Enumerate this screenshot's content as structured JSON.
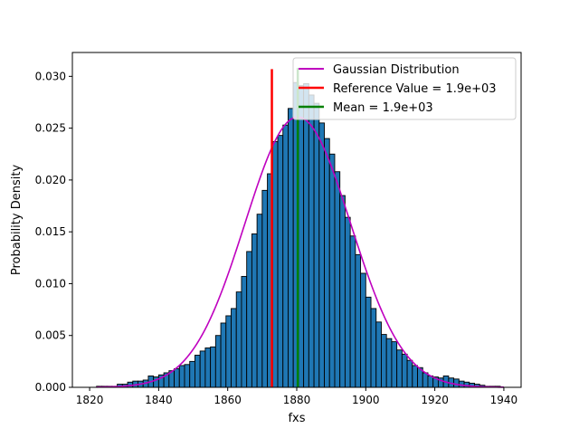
{
  "chart_data": {
    "type": "bar",
    "title": "",
    "xlabel": "fxs",
    "ylabel": "Probability Density",
    "xlim": [
      1815,
      1945
    ],
    "ylim": [
      0,
      0.0323
    ],
    "x_ticks": [
      1820,
      1840,
      1860,
      1880,
      1900,
      1920,
      1940
    ],
    "x_tick_labels": [
      "1820",
      "1840",
      "1860",
      "1880",
      "1900",
      "1920",
      "1940"
    ],
    "y_ticks": [
      0.0,
      0.005,
      0.01,
      0.015,
      0.02,
      0.025,
      0.03
    ],
    "y_tick_labels": [
      "0.000",
      "0.005",
      "0.010",
      "0.015",
      "0.020",
      "0.025",
      "0.030"
    ],
    "grid": false,
    "legend_position": "top-right",
    "histogram": {
      "color": "#1f77b4",
      "edge_color": "#000000",
      "bin_width": 1.5,
      "bin_starts": [
        1822.0,
        1823.5,
        1825.0,
        1826.5,
        1828.0,
        1829.5,
        1831.0,
        1832.5,
        1834.0,
        1835.5,
        1837.0,
        1838.5,
        1840.0,
        1841.5,
        1843.0,
        1844.5,
        1846.0,
        1847.5,
        1849.0,
        1850.5,
        1852.0,
        1853.5,
        1855.0,
        1856.5,
        1858.0,
        1859.5,
        1861.0,
        1862.5,
        1864.0,
        1865.5,
        1867.0,
        1868.5,
        1870.0,
        1871.5,
        1873.0,
        1874.5,
        1876.0,
        1877.5,
        1879.0,
        1880.5,
        1882.0,
        1883.5,
        1885.0,
        1886.5,
        1888.0,
        1889.5,
        1891.0,
        1892.5,
        1894.0,
        1895.5,
        1897.0,
        1898.5,
        1900.0,
        1901.5,
        1903.0,
        1904.5,
        1906.0,
        1907.5,
        1909.0,
        1910.5,
        1912.0,
        1913.5,
        1915.0,
        1916.5,
        1918.0,
        1919.5,
        1921.0,
        1922.5,
        1924.0,
        1925.5,
        1927.0,
        1928.5,
        1930.0,
        1931.5,
        1933.0,
        1934.5,
        1936.0,
        1937.5
      ],
      "densities": [
        0.0001,
        0.0001,
        0.0001,
        0.0001,
        0.0003,
        0.0003,
        0.0005,
        0.0006,
        0.0006,
        0.0007,
        0.0011,
        0.001,
        0.0012,
        0.0014,
        0.0016,
        0.0018,
        0.0021,
        0.0022,
        0.0025,
        0.0031,
        0.0035,
        0.0038,
        0.0039,
        0.005,
        0.0062,
        0.0069,
        0.0076,
        0.0092,
        0.0107,
        0.0131,
        0.0148,
        0.0167,
        0.019,
        0.0206,
        0.0237,
        0.0243,
        0.0253,
        0.0269,
        0.0294,
        0.0291,
        0.0293,
        0.0282,
        0.0274,
        0.0255,
        0.024,
        0.0225,
        0.0208,
        0.0185,
        0.0164,
        0.0146,
        0.0128,
        0.011,
        0.0087,
        0.0076,
        0.0063,
        0.0051,
        0.0047,
        0.0044,
        0.0036,
        0.0032,
        0.0026,
        0.0021,
        0.0019,
        0.0014,
        0.0011,
        0.001,
        0.0009,
        0.0011,
        0.0009,
        0.0008,
        0.0006,
        0.0005,
        0.0004,
        0.0003,
        0.0002,
        0.0001,
        0.0001,
        0.0001
      ]
    },
    "series": [
      {
        "name": "Gaussian Distribution",
        "type": "line",
        "color": "#bf00bf",
        "mean": 1880.3,
        "std": 15.3,
        "x_range": [
          1822,
          1940
        ]
      },
      {
        "name": "Reference Value = 1.9e+03",
        "type": "vline",
        "color": "#ff0000",
        "x": 1872.8,
        "y_range": [
          0,
          0.0307
        ]
      },
      {
        "name": "Mean = 1.9e+03",
        "type": "vline",
        "color": "#008000",
        "x": 1880.3,
        "y_range": [
          0,
          0.0308
        ]
      }
    ]
  }
}
